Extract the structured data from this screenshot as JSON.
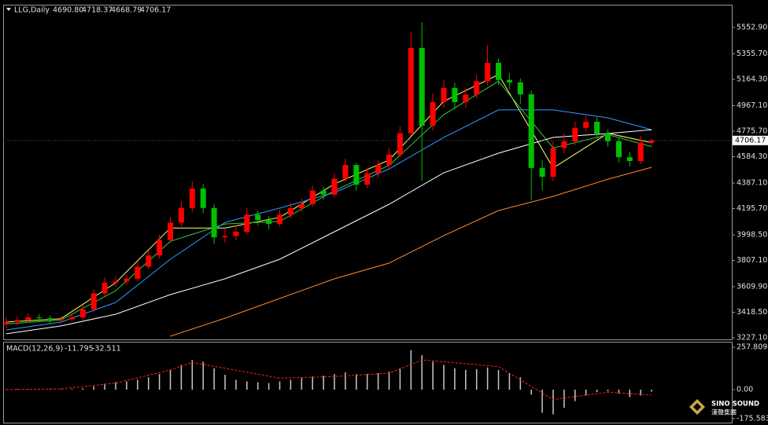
{
  "chart_data": [
    {
      "type": "candlestick",
      "title": "LLG,Daily",
      "ohlc_labels": [
        "4690.80",
        "4718.37",
        "4668.79",
        "4706.17"
      ],
      "open": [
        3330,
        3345,
        3360,
        3380,
        3374,
        3360,
        3365,
        3380,
        3440,
        3560,
        3640,
        3650,
        3670,
        3760,
        3845,
        3960,
        4090,
        4200,
        4346,
        4200,
        3980,
        3990,
        4022,
        4150,
        4110,
        4081,
        4150,
        4199,
        4230,
        4330,
        4300,
        4420,
        4522,
        4375,
        4460,
        4522,
        4600,
        4760,
        5400,
        4817,
        4994,
        5100,
        4994,
        5050,
        5150,
        5288,
        5160,
        5141,
        5052,
        4500,
        4434,
        4650,
        4699,
        4800,
        4846,
        4758,
        4700,
        4581,
        4552,
        4690.8
      ],
      "high": [
        3380,
        3390,
        3410,
        3405,
        3395,
        3390,
        3410,
        3470,
        3590,
        3680,
        3690,
        3700,
        3800,
        3880,
        4000,
        4130,
        4250,
        4400,
        4380,
        4230,
        4040,
        4070,
        4200,
        4180,
        4140,
        4190,
        4240,
        4270,
        4370,
        4360,
        4460,
        4570,
        4540,
        4500,
        4560,
        4650,
        4810,
        5520,
        5594,
        5060,
        5160,
        5140,
        5100,
        5200,
        5423,
        5320,
        5210,
        5170,
        5080,
        4560,
        4700,
        4760,
        4850,
        4890,
        4880,
        4790,
        4730,
        4620,
        4740,
        4718.37
      ],
      "low": [
        3300,
        3320,
        3340,
        3345,
        3330,
        3335,
        3350,
        3360,
        3420,
        3540,
        3610,
        3620,
        3650,
        3740,
        3820,
        3940,
        4060,
        4170,
        4160,
        3930,
        3940,
        3960,
        4000,
        4070,
        4040,
        4060,
        4120,
        4170,
        4210,
        4260,
        4280,
        4400,
        4330,
        4350,
        4430,
        4500,
        4580,
        4740,
        4405,
        4780,
        4950,
        4940,
        4950,
        5020,
        5120,
        5120,
        5090,
        4980,
        4257,
        4330,
        4400,
        4610,
        4670,
        4770,
        4720,
        4660,
        4540,
        4510,
        4530,
        4668.79
      ],
      "close": [
        3345,
        3360,
        3380,
        3374,
        3360,
        3365,
        3380,
        3440,
        3560,
        3640,
        3650,
        3670,
        3760,
        3845,
        3960,
        4090,
        4200,
        4346,
        4200,
        3980,
        3990,
        4022,
        4150,
        4110,
        4081,
        4150,
        4199,
        4230,
        4330,
        4300,
        4420,
        4522,
        4375,
        4460,
        4522,
        4600,
        4760,
        5400,
        4817,
        4994,
        5100,
        4994,
        5050,
        5150,
        5288,
        5160,
        5141,
        5052,
        4500,
        4434,
        4650,
        4699,
        4800,
        4846,
        4758,
        4700,
        4581,
        4552,
        4690,
        4706.17
      ],
      "up_color": "#ff0000",
      "down_color": "#00c000",
      "lines": [
        {
          "color": "#ffff66",
          "x": [
            0,
            5,
            10,
            15,
            20,
            25,
            30,
            35,
            40,
            45,
            50,
            55,
            59
          ],
          "values": [
            3345,
            3370,
            3640,
            4050,
            4050,
            4130,
            4380,
            4560,
            5000,
            5200,
            4500,
            4760,
            4690
          ]
        },
        {
          "color": "#33cc33",
          "x": [
            0,
            5,
            10,
            15,
            20,
            25,
            30,
            35,
            40,
            45,
            50,
            55,
            59
          ],
          "values": [
            3330,
            3360,
            3580,
            3950,
            4080,
            4100,
            4330,
            4520,
            4900,
            5150,
            4650,
            4750,
            4660
          ]
        },
        {
          "color": "#3399ff",
          "x": [
            0,
            5,
            10,
            15,
            20,
            25,
            30,
            35,
            40,
            45,
            50,
            55,
            59
          ],
          "values": [
            3286,
            3345,
            3492,
            3816,
            4092,
            4199,
            4316,
            4493,
            4729,
            4935,
            4935,
            4876,
            4787
          ]
        },
        {
          "color": "#ffffff",
          "x": [
            0,
            5,
            10,
            15,
            20,
            25,
            30,
            35,
            40,
            45,
            50,
            55,
            59
          ],
          "values": [
            3257,
            3316,
            3404,
            3551,
            3669,
            3816,
            4022,
            4228,
            4464,
            4611,
            4729,
            4758,
            4787
          ]
        },
        {
          "color": "#ff8c33",
          "x": [
            15,
            20,
            25,
            30,
            35,
            40,
            45,
            50,
            55,
            59
          ],
          "values": [
            3239,
            3374,
            3522,
            3669,
            3787,
            3993,
            4181,
            4287,
            4416,
            4505
          ]
        }
      ],
      "ylim": [
        3215.3,
        5717.8
      ],
      "yticks": [
        {
          "value": 5552.9,
          "label": "5552.90"
        },
        {
          "value": 5355.7,
          "label": "5355.70"
        },
        {
          "value": 5164.3,
          "label": "5164.30"
        },
        {
          "value": 4967.1,
          "label": "4967.10"
        },
        {
          "value": 4775.7,
          "label": "4775.70"
        },
        {
          "value": 4584.3,
          "label": "4584.30"
        },
        {
          "value": 4387.1,
          "label": "4387.10"
        },
        {
          "value": 4195.7,
          "label": "4195.70"
        },
        {
          "value": 3998.5,
          "label": "3998.50"
        },
        {
          "value": 3807.1,
          "label": "3807.10"
        },
        {
          "value": 3609.9,
          "label": "3609.90"
        },
        {
          "value": 3418.5,
          "label": "3418.50"
        },
        {
          "value": 3227.1,
          "label": "3227.10"
        }
      ]
    },
    {
      "type": "macd",
      "title": "MACD(12,26,9)",
      "color": "#c8c8c8",
      "values": [
        2,
        3,
        4,
        5,
        4,
        3,
        4,
        8,
        20,
        35,
        45,
        50,
        60,
        75,
        95,
        120,
        150,
        180,
        170,
        130,
        90,
        60,
        50,
        45,
        40,
        50,
        60,
        70,
        80,
        85,
        95,
        105,
        95,
        95,
        100,
        110,
        130,
        240,
        210,
        170,
        150,
        130,
        120,
        125,
        135,
        120,
        100,
        75,
        -30,
        -140,
        -150,
        -110,
        -70,
        -35,
        -15,
        -10,
        -25,
        -45,
        -35,
        -11.795
      ],
      "signal": {
        "color": "#ff2020",
        "x": [
          0,
          5,
          10,
          15,
          17,
          20,
          25,
          30,
          35,
          38,
          40,
          45,
          50,
          55,
          59
        ],
        "values": [
          0,
          5,
          40,
          120,
          165,
          130,
          70,
          80,
          100,
          180,
          170,
          140,
          -60,
          -15,
          -32.511
        ]
      },
      "ylim": [
        -200.4,
        281.7
      ],
      "yticks": [
        257.809,
        {
          "value": 0,
          "label": "0.00"
        },
        -175.583
      ]
    }
  ],
  "logo": {
    "name": "SINO SOUND",
    "subtitle": "漢聲集團"
  }
}
